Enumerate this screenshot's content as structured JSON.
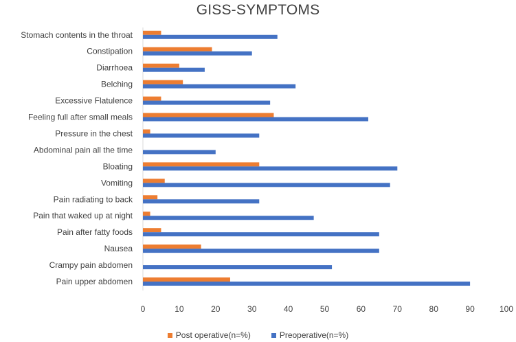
{
  "chart_data": {
    "type": "bar",
    "orientation": "horizontal",
    "title": "GISS-SYMPTOMS",
    "categories": [
      "Pain upper abdomen",
      "Crampy pain abdomen",
      "Nausea",
      "Pain after fatty foods",
      "Pain that waked up at night",
      "Pain radiating to back",
      "Vomiting",
      "Bloating",
      "Abdominal pain all the time",
      "Pressure in the chest",
      "Feeling full after small meals",
      "Excessive Flatulence",
      "Belching",
      "Diarrhoea",
      "Constipation",
      "Stomach contents in the throat"
    ],
    "series": [
      {
        "name": "Post operative(n=%)",
        "color": "#ED7D31",
        "values": [
          24,
          0,
          16,
          5,
          2,
          4,
          6,
          32,
          0,
          2,
          36,
          5,
          11,
          10,
          19,
          5
        ]
      },
      {
        "name": "Preoperative(n=%)",
        "color": "#4472C4",
        "values": [
          90,
          52,
          65,
          65,
          47,
          32,
          68,
          70,
          20,
          32,
          62,
          35,
          42,
          17,
          30,
          37
        ]
      }
    ],
    "xlim": [
      0,
      100
    ],
    "xticks": [
      0,
      10,
      20,
      30,
      40,
      50,
      60,
      70,
      80,
      90,
      100
    ],
    "grid": false,
    "legend_position": "bottom"
  }
}
